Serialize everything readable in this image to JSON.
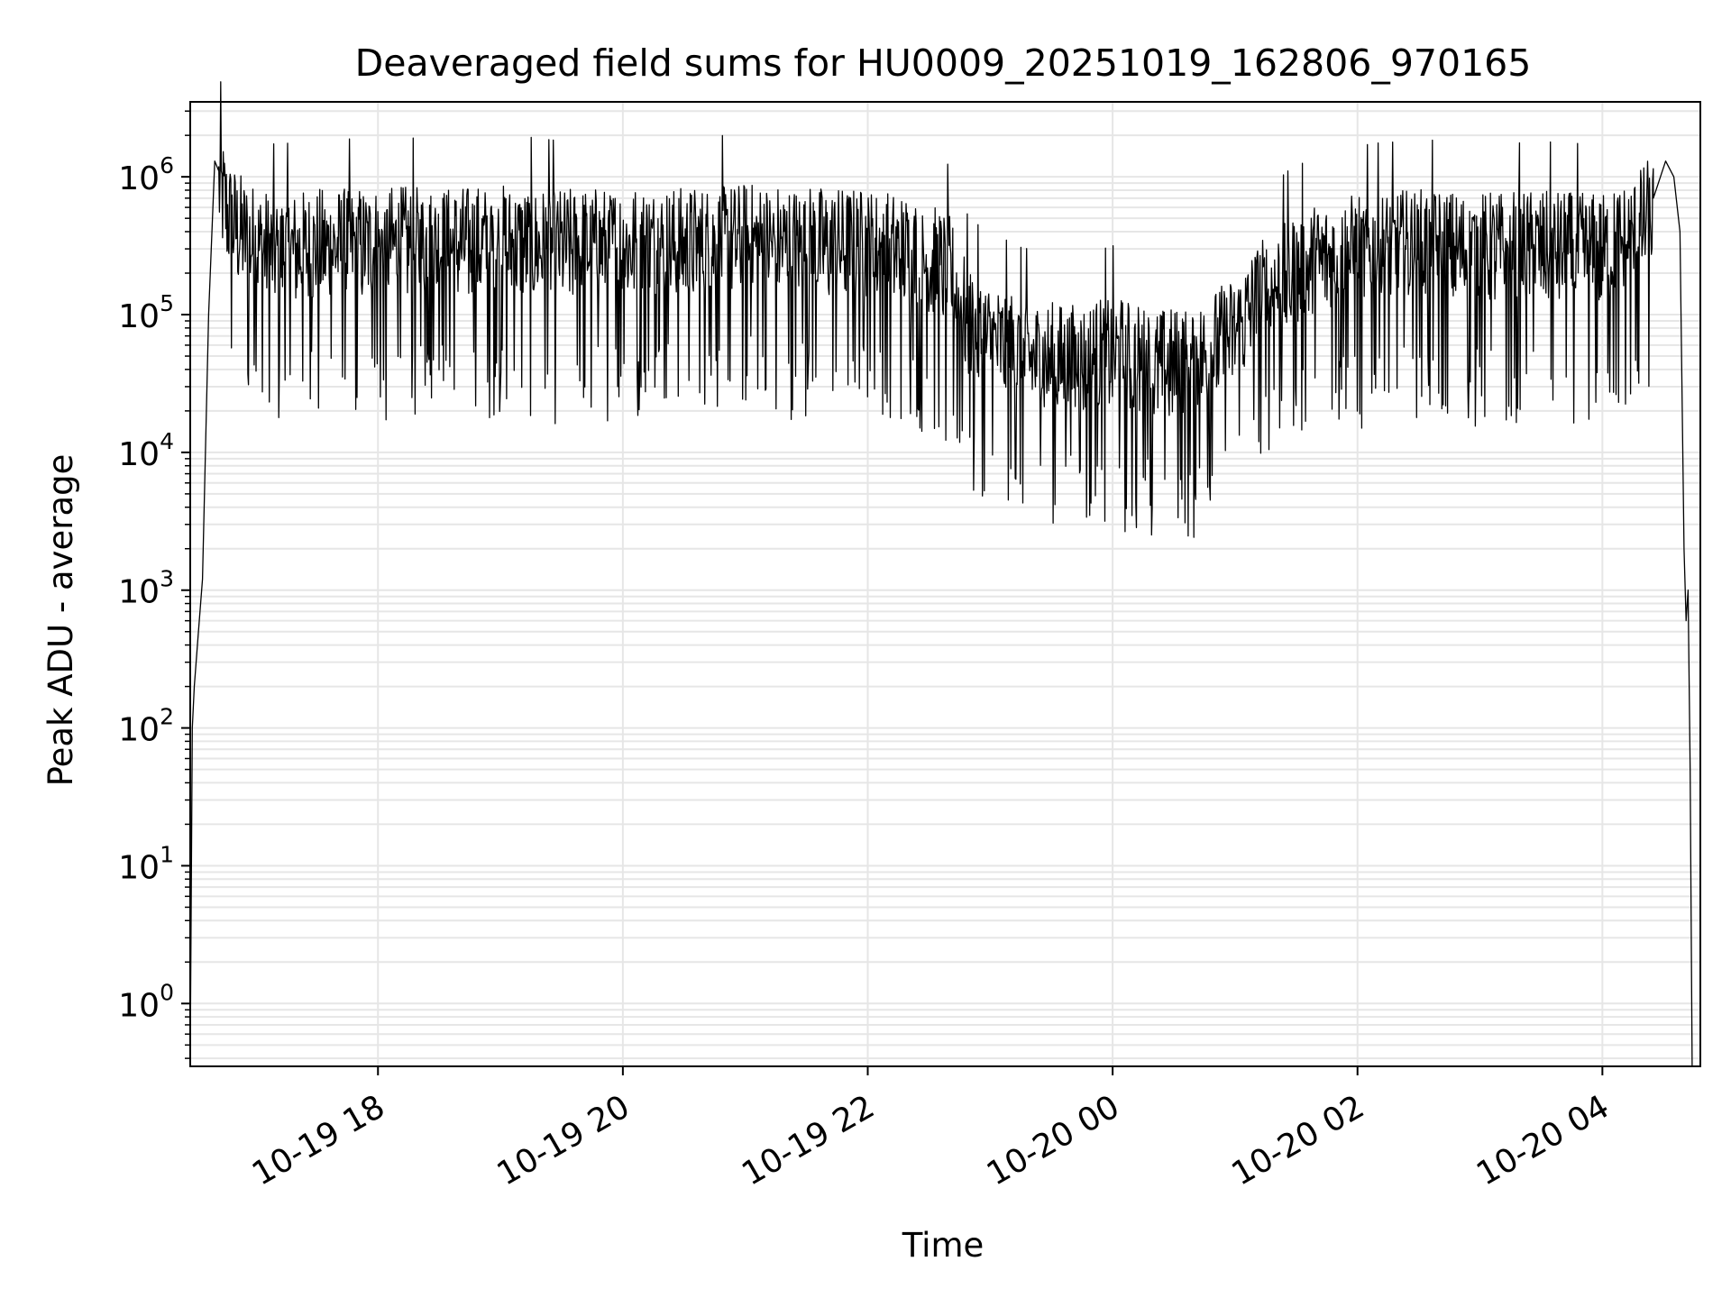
{
  "chart_data": {
    "type": "line",
    "title": "Deaveraged field sums for HU0009_20251019_162806_970165",
    "xlabel": "Time",
    "ylabel": "Peak ADU - average",
    "yscale": "log",
    "ylim": [
      0.35,
      3500000
    ],
    "xlim": [
      "2025-10-19 16:28",
      "2025-10-20 04:48"
    ],
    "grid": true,
    "grid_color": "#e6e6e6",
    "line_color": "#000000",
    "x_ticks": [
      {
        "value": "2025-10-19 18:00",
        "label": "10-19 18"
      },
      {
        "value": "2025-10-19 20:00",
        "label": "10-19 20"
      },
      {
        "value": "2025-10-19 22:00",
        "label": "10-19 22"
      },
      {
        "value": "2025-10-20 00:00",
        "label": "10-20 00"
      },
      {
        "value": "2025-10-20 02:00",
        "label": "10-20 02"
      },
      {
        "value": "2025-10-20 04:00",
        "label": "10-20 04"
      }
    ],
    "y_ticks": [
      {
        "value": 1,
        "base": "10",
        "exp": "0"
      },
      {
        "value": 10,
        "base": "10",
        "exp": "1"
      },
      {
        "value": 100,
        "base": "10",
        "exp": "2"
      },
      {
        "value": 1000,
        "base": "10",
        "exp": "3"
      },
      {
        "value": 10000,
        "base": "10",
        "exp": "4"
      },
      {
        "value": 100000,
        "base": "10",
        "exp": "5"
      },
      {
        "value": 1000000,
        "base": "10",
        "exp": "6"
      }
    ],
    "series": [
      {
        "x": [
          "2025-10-19 16:28",
          "2025-10-19 16:29",
          "2025-10-19 16:30",
          "2025-10-19 16:32",
          "2025-10-19 16:34",
          "2025-10-19 16:37",
          "2025-10-19 16:40",
          "2025-10-19 16:42",
          "2025-10-19 16:44",
          "2025-10-19 16:46",
          "2025-10-19 16:48",
          "2025-10-19 16:52",
          "2025-10-19 16:56",
          "2025-10-19 17:00",
          "2025-10-19 17:10",
          "2025-10-19 17:30",
          "2025-10-19 18:00",
          "2025-10-19 18:30",
          "2025-10-19 19:00",
          "2025-10-19 19:30",
          "2025-10-19 20:00",
          "2025-10-19 20:30",
          "2025-10-19 21:00",
          "2025-10-19 21:30",
          "2025-10-19 22:00",
          "2025-10-19 22:20",
          "2025-10-19 22:40",
          "2025-10-19 22:50",
          "2025-10-19 23:00",
          "2025-10-19 23:20",
          "2025-10-19 23:40",
          "2025-10-20 00:00",
          "2025-10-20 00:20",
          "2025-10-20 00:40",
          "2025-10-20 01:00",
          "2025-10-20 01:10",
          "2025-10-20 01:20",
          "2025-10-20 01:40",
          "2025-10-20 02:00",
          "2025-10-20 02:30",
          "2025-10-20 03:00",
          "2025-10-20 03:30",
          "2025-10-20 04:00",
          "2025-10-20 04:15",
          "2025-10-20 04:25",
          "2025-10-20 04:31",
          "2025-10-20 04:35",
          "2025-10-20 04:38",
          "2025-10-20 04:40",
          "2025-10-20 04:41",
          "2025-10-20 04:42",
          "2025-10-20 04:43",
          "2025-10-20 04:44"
        ],
        "y": [
          0.4,
          100,
          200,
          500,
          1200,
          100000,
          1300000,
          1100000,
          900000,
          700000,
          600000,
          500000,
          450000,
          400000,
          350000,
          380000,
          400000,
          390000,
          410000,
          380000,
          400000,
          390000,
          420000,
          400000,
          380000,
          350000,
          250000,
          100000,
          80000,
          60000,
          55000,
          65000,
          50000,
          55000,
          90000,
          150000,
          200000,
          300000,
          350000,
          380000,
          360000,
          370000,
          350000,
          450000,
          700000,
          1300000,
          1000000,
          400000,
          2000,
          600,
          1000,
          50,
          0.35
        ]
      }
    ]
  }
}
